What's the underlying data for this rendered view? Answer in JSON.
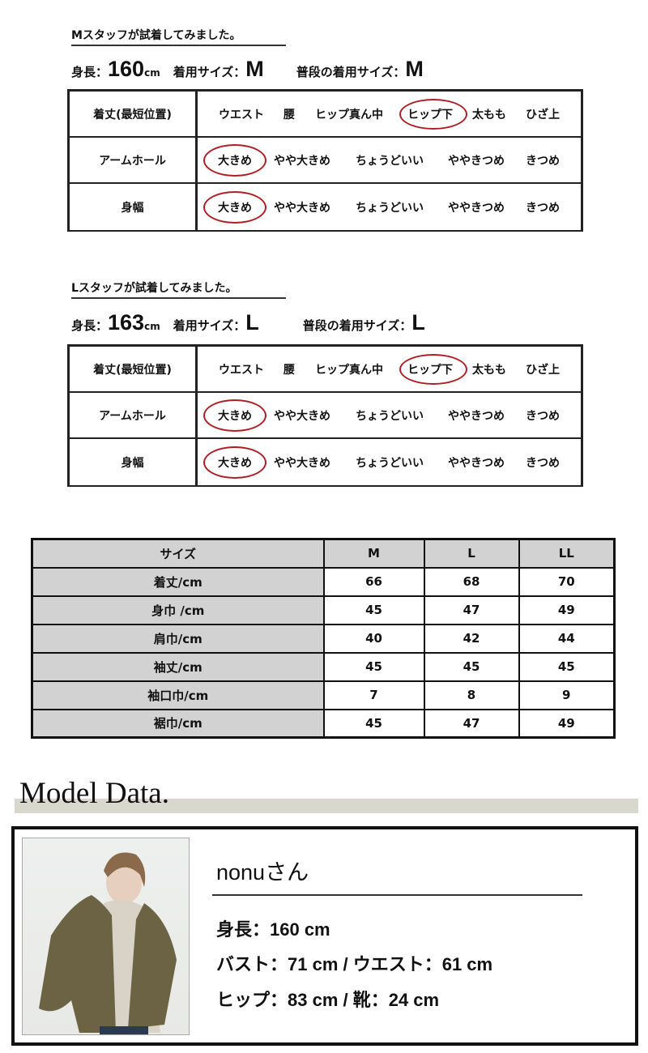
{
  "fit_sections": [
    {
      "title": "Mスタッフが試着してみました。",
      "height_label": "身長：",
      "height": "160",
      "height_unit": "cm",
      "wear_label": "着用サイズ：",
      "wear": "M",
      "usual_label": "普段の着用サイズ：",
      "usual": "M",
      "rows": [
        {
          "label": "着丈(最短位置)",
          "options": [
            "ウエスト",
            "腰",
            "ヒップ真ん中",
            "ヒップ下",
            "太もも",
            "ひざ上"
          ],
          "selected": 3
        },
        {
          "label": "アームホール",
          "options": [
            "大きめ",
            "やや大きめ",
            "ちょうどいい",
            "ややきつめ",
            "きつめ"
          ],
          "selected": 0
        },
        {
          "label": "身幅",
          "options": [
            "大きめ",
            "やや大きめ",
            "ちょうどいい",
            "ややきつめ",
            "きつめ"
          ],
          "selected": 0
        }
      ]
    },
    {
      "title": "Lスタッフが試着してみました。",
      "height_label": "身長：",
      "height": "163",
      "height_unit": "cm",
      "wear_label": "着用サイズ：",
      "wear": "L",
      "usual_label": "普段の着用サイズ：",
      "usual": "L",
      "rows": [
        {
          "label": "着丈(最短位置)",
          "options": [
            "ウエスト",
            "腰",
            "ヒップ真ん中",
            "ヒップ下",
            "太もも",
            "ひざ上"
          ],
          "selected": 3
        },
        {
          "label": "アームホール",
          "options": [
            "大きめ",
            "やや大きめ",
            "ちょうどいい",
            "ややきつめ",
            "きつめ"
          ],
          "selected": 0
        },
        {
          "label": "身幅",
          "options": [
            "大きめ",
            "やや大きめ",
            "ちょうどいい",
            "ややきつめ",
            "きつめ"
          ],
          "selected": 0
        }
      ]
    }
  ],
  "highlight_color": "#b01e23",
  "size_table": {
    "headers": [
      "サイズ",
      "M",
      "L",
      "LL"
    ],
    "rows": [
      [
        "着丈/cm",
        "66",
        "68",
        "70"
      ],
      [
        "身巾 /cm",
        "45",
        "47",
        "49"
      ],
      [
        "肩巾/cm",
        "40",
        "42",
        "44"
      ],
      [
        "袖丈/cm",
        "45",
        "45",
        "45"
      ],
      [
        "袖口巾/cm",
        "7",
        "8",
        "9"
      ],
      [
        "裾巾/cm",
        "45",
        "47",
        "49"
      ]
    ]
  },
  "model": {
    "section_title": "Model Data.",
    "name": "nonuさん",
    "lines": [
      "身長：160 cm",
      "バスト：71 cm / ウエスト：61 cm",
      "ヒップ：83 cm / 靴：24 cm"
    ]
  }
}
